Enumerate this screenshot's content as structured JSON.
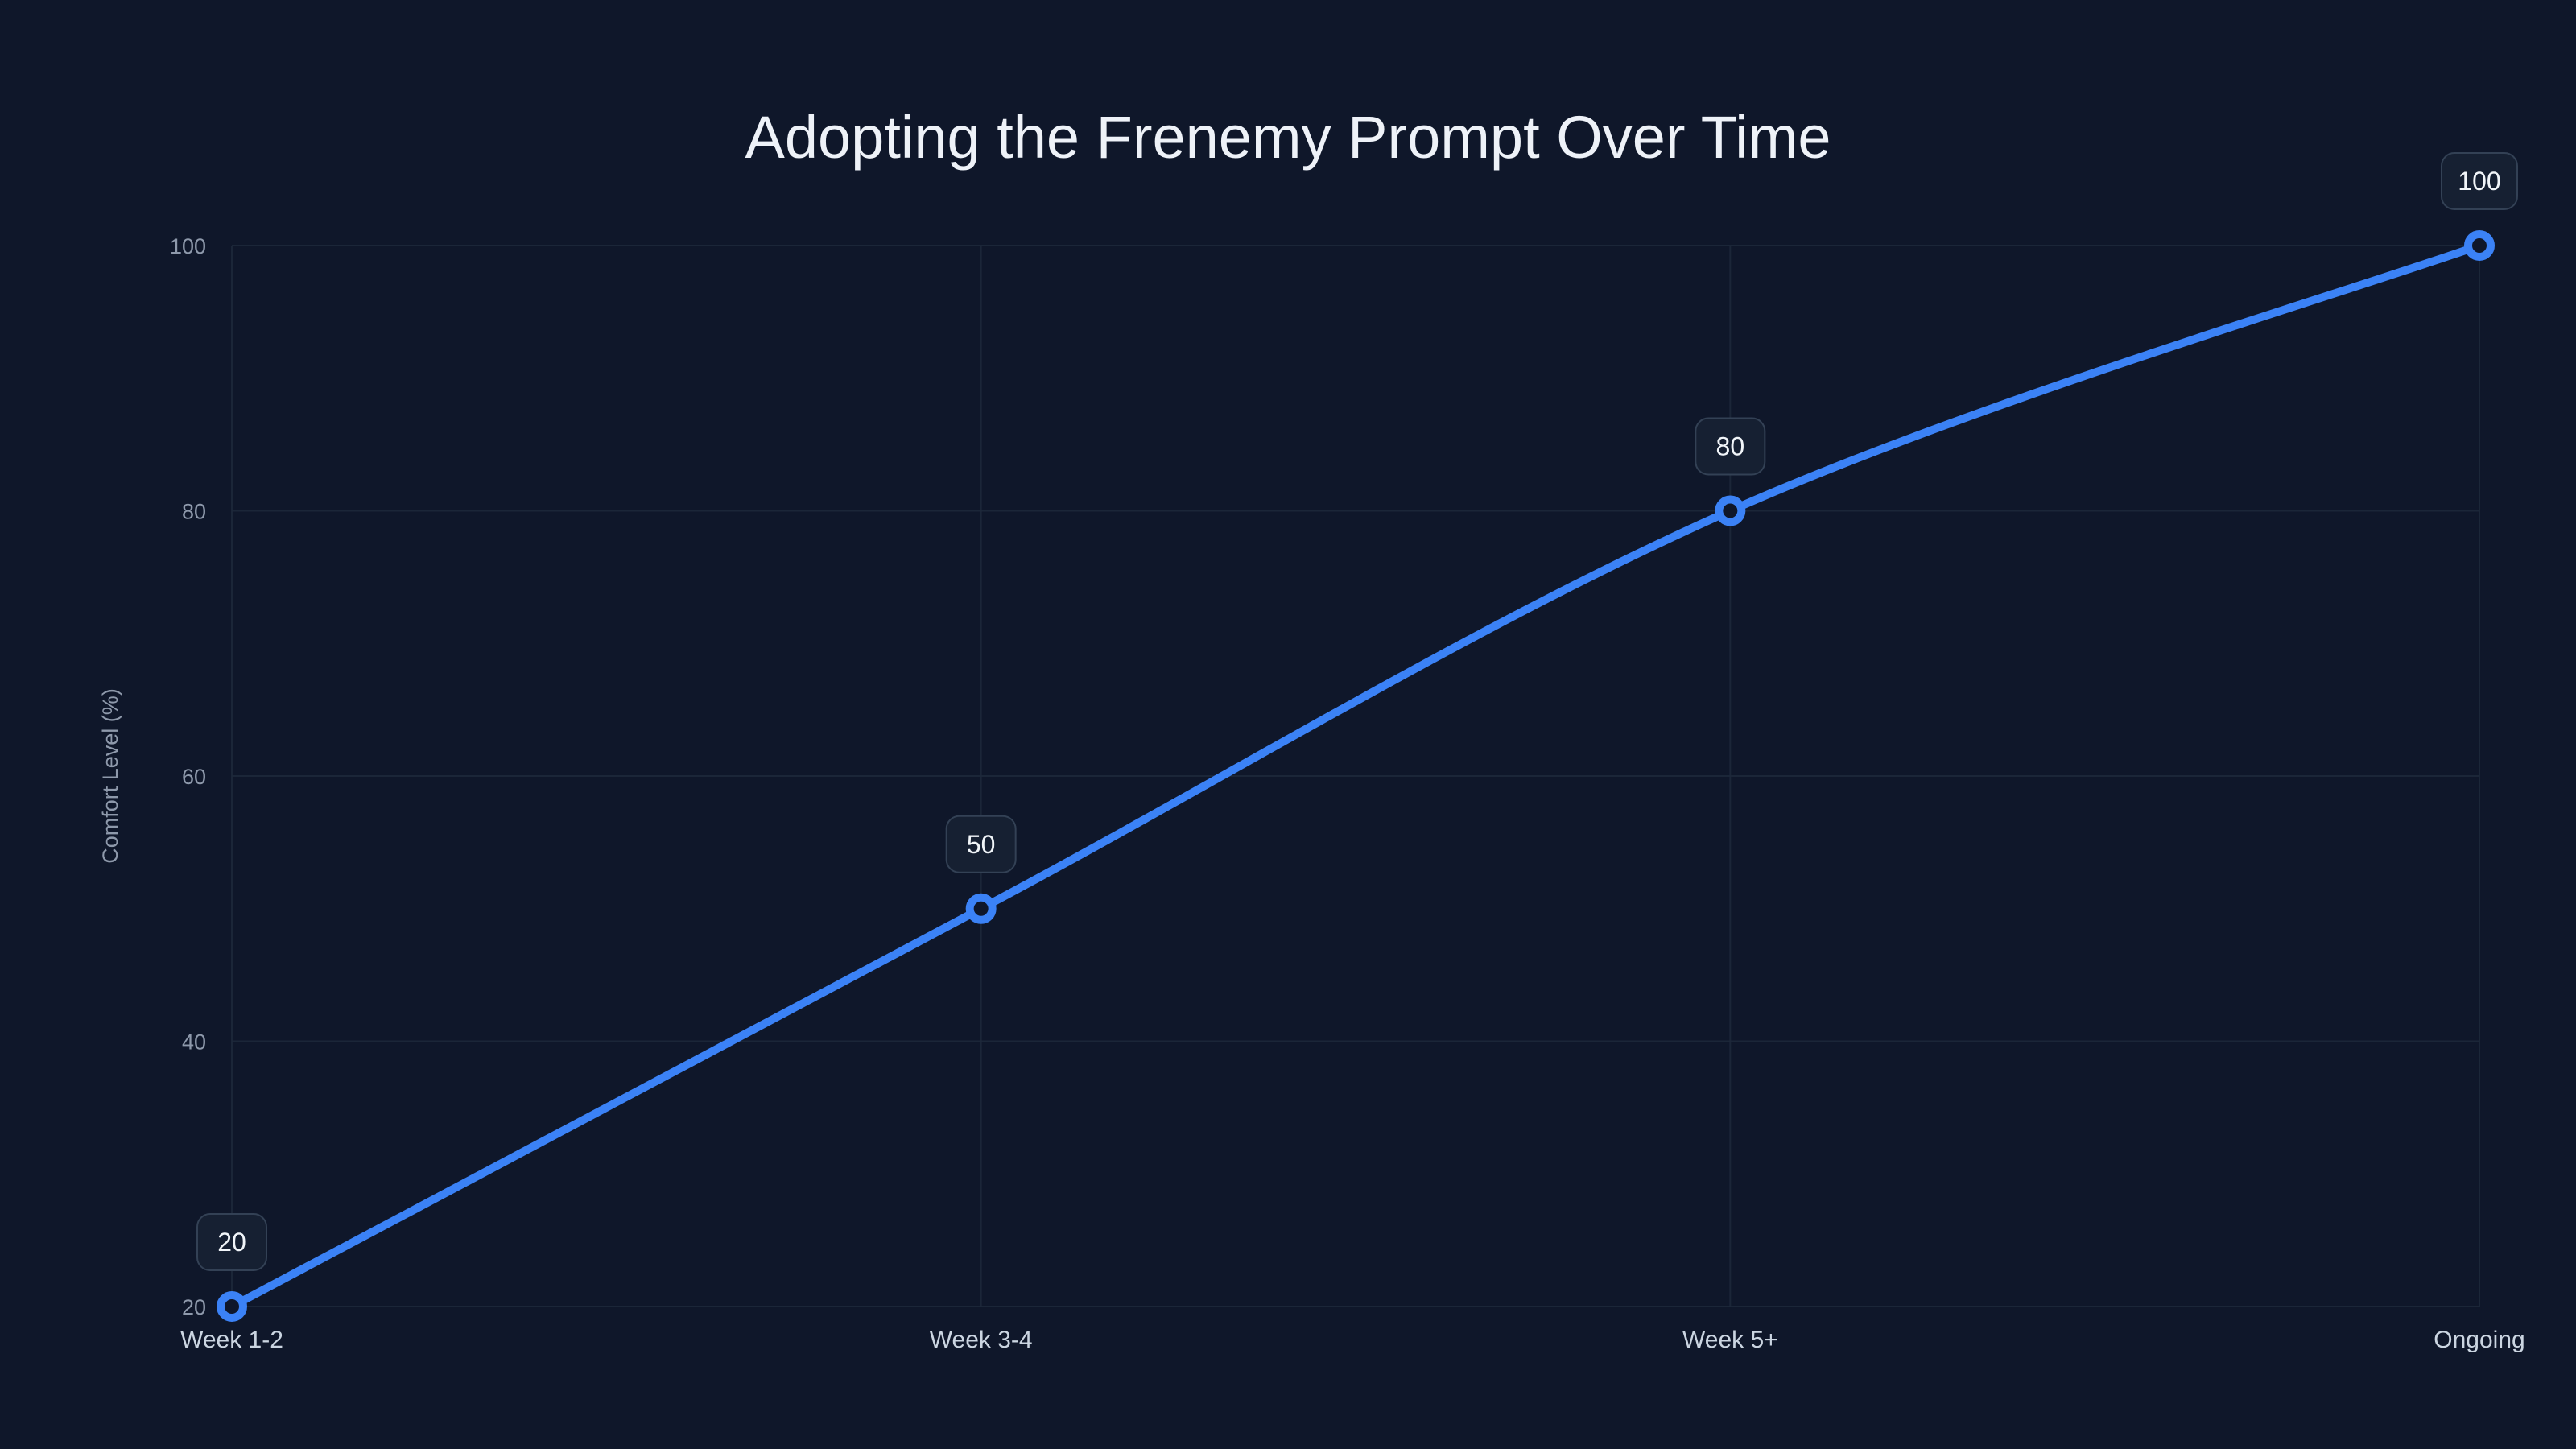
{
  "title": "Adopting the Frenemy Prompt Over Time",
  "chart_data": {
    "type": "line",
    "title": "Adopting the Frenemy Prompt Over Time",
    "categories": [
      "Week 1-2",
      "Week 3-4",
      "Week 5+",
      "Ongoing"
    ],
    "series": [
      {
        "name": "Comfort Level (%)",
        "values": [
          20,
          50,
          80,
          100
        ]
      }
    ],
    "xlabel": "",
    "ylabel": "Comfort Level (%)",
    "ylim": [
      20,
      100
    ],
    "yticks": [
      20,
      40,
      60,
      80,
      100
    ],
    "grid": "on",
    "legend_position": "none",
    "line_style": "smooth",
    "point_labels_visible": true,
    "colors": {
      "background": "#0f172a",
      "line": "#3b82f6",
      "marker_fill": "#0f172a",
      "grid": "#1e293b",
      "title_text": "#eef2f8",
      "axis_text": "#8e99ab",
      "category_text": "#cbd5e1",
      "label_box_bg": "#162032",
      "label_box_border": "#334155",
      "label_text": "#f1f5f9"
    }
  }
}
